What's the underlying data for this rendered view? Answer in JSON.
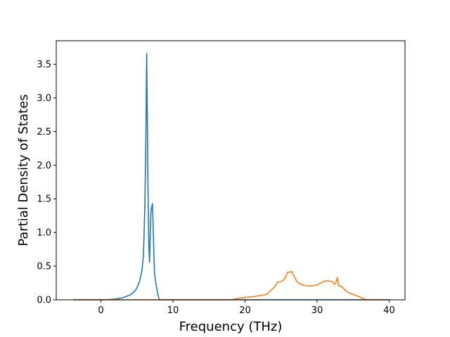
{
  "chart_data": {
    "type": "line",
    "title": "",
    "xlabel": "Frequency (THz)",
    "ylabel": "Partial Density of States",
    "xlim": [
      -6.2,
      42.2
    ],
    "ylim": [
      0,
      3.85
    ],
    "xticks": [
      0,
      10,
      20,
      30,
      40
    ],
    "xtick_labels": [
      "0",
      "10",
      "20",
      "30",
      "40"
    ],
    "yticks": [
      0,
      0.5,
      1.0,
      1.5,
      2.0,
      2.5,
      3.0,
      3.5
    ],
    "ytick_labels": [
      "0.0",
      "0.5",
      "1.0",
      "1.5",
      "2.0",
      "2.5",
      "3.0",
      "3.5"
    ],
    "grid": false,
    "legend": "none",
    "series": [
      {
        "color": "#1f77b4",
        "x": [
          -3.8,
          -2,
          -1,
          0,
          1,
          2,
          2.5,
          3,
          3.5,
          4,
          4.4,
          4.8,
          5.1,
          5.4,
          5.7,
          5.9,
          6.1,
          6.25,
          6.35,
          6.45,
          6.55,
          6.65,
          6.75,
          6.85,
          6.95,
          7.05,
          7.15,
          7.25,
          7.35,
          7.45,
          7.55,
          7.7,
          7.9,
          8.1,
          8.5,
          40
        ],
        "y": [
          0,
          0,
          0,
          0,
          0.003,
          0.01,
          0.02,
          0.03,
          0.05,
          0.07,
          0.1,
          0.14,
          0.2,
          0.29,
          0.44,
          0.66,
          1.4,
          2.5,
          3.66,
          2.6,
          1.5,
          0.8,
          0.56,
          1.0,
          1.32,
          1.38,
          1.43,
          1.1,
          0.65,
          0.38,
          0.3,
          0.2,
          0.08,
          0.0,
          0,
          0
        ]
      },
      {
        "color": "#ff7f0e",
        "x": [
          -3.8,
          0,
          10,
          18,
          19,
          20,
          21,
          22,
          23,
          23.5,
          24,
          24.5,
          25,
          25.3,
          25.6,
          25.9,
          26.2,
          26.5,
          26.8,
          27.2,
          27.6,
          28,
          28.5,
          29,
          29.5,
          30,
          30.5,
          31,
          31.5,
          32,
          32.2,
          32.4,
          32.6,
          32.8,
          33,
          33.5,
          34,
          34.5,
          35,
          35.5,
          36,
          36.3,
          36.6,
          37,
          40
        ],
        "y": [
          0,
          0,
          0,
          0,
          0.02,
          0.035,
          0.045,
          0.06,
          0.08,
          0.13,
          0.18,
          0.26,
          0.27,
          0.29,
          0.33,
          0.41,
          0.41,
          0.42,
          0.35,
          0.27,
          0.24,
          0.22,
          0.21,
          0.205,
          0.21,
          0.22,
          0.25,
          0.28,
          0.28,
          0.275,
          0.265,
          0.23,
          0.25,
          0.33,
          0.21,
          0.19,
          0.13,
          0.1,
          0.08,
          0.06,
          0.04,
          0.02,
          0.01,
          0,
          0
        ]
      }
    ]
  }
}
